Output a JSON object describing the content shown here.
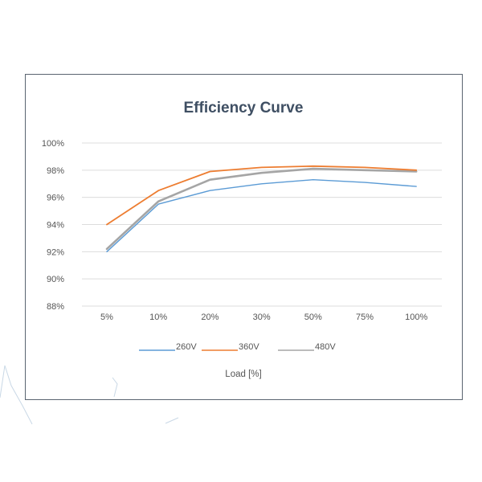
{
  "chart_data": {
    "type": "line",
    "title": "Efficiency Curve",
    "xlabel": "Load [%]",
    "ylabel": "",
    "categories": [
      "5%",
      "10%",
      "20%",
      "30%",
      "50%",
      "75%",
      "100%"
    ],
    "y_ticks": [
      "100%",
      "98%",
      "96%",
      "94%",
      "92%",
      "90%",
      "88%"
    ],
    "ylim": [
      88,
      100
    ],
    "grid": true,
    "legend_position": "bottom",
    "series": [
      {
        "name": "260V",
        "color": "#5b9bd5",
        "values": [
          92.0,
          95.5,
          96.5,
          97.0,
          97.3,
          97.1,
          96.8
        ]
      },
      {
        "name": "360V",
        "color": "#ed7d31",
        "values": [
          94.0,
          96.5,
          97.9,
          98.2,
          98.3,
          98.2,
          98.0
        ]
      },
      {
        "name": "480V",
        "color": "#a5a5a5",
        "values": [
          92.2,
          95.7,
          97.3,
          97.8,
          98.1,
          98.0,
          97.9
        ]
      }
    ]
  }
}
